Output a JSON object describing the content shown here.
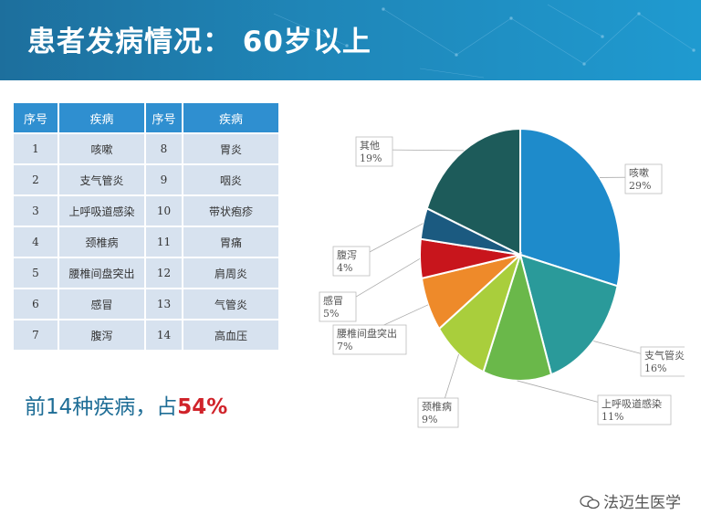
{
  "header": {
    "title": "患者发病情况：  60岁以上"
  },
  "table": {
    "headers": [
      "序号",
      "疾病",
      "序号",
      "疾病"
    ],
    "rows": [
      [
        "1",
        "咳嗽",
        "8",
        "胃炎"
      ],
      [
        "2",
        "支气管炎",
        "9",
        "咽炎"
      ],
      [
        "3",
        "上呼吸道感染",
        "10",
        "带状疱疹"
      ],
      [
        "4",
        "颈椎病",
        "11",
        "胃痛"
      ],
      [
        "5",
        "腰椎间盘突出",
        "12",
        "肩周炎"
      ],
      [
        "6",
        "感冒",
        "13",
        "气管炎"
      ],
      [
        "7",
        "腹泻",
        "14",
        "高血压"
      ]
    ]
  },
  "summary": {
    "text": "前14种疾病，占",
    "value": "54%"
  },
  "chart_data": {
    "type": "pie",
    "slices": [
      {
        "label": "咳嗽",
        "value": 29,
        "display": "29%",
        "color": "#1e8bcb"
      },
      {
        "label": "支气管炎",
        "value": 16,
        "display": "16%",
        "color": "#2a9a9a"
      },
      {
        "label": "上呼吸道感染",
        "value": 11,
        "display": "11%",
        "color": "#6ab84a"
      },
      {
        "label": "颈椎病",
        "value": 9,
        "display": "9%",
        "color": "#a9ce3c"
      },
      {
        "label": "腰椎间盘突出",
        "value": 7,
        "display": "7%",
        "color": "#ee8a2a"
      },
      {
        "label": "感冒",
        "value": 5,
        "display": "5%",
        "color": "#c8151c"
      },
      {
        "label": "腹泻",
        "value": 4,
        "display": "4%",
        "color": "#1b5a80"
      },
      {
        "label": "其他",
        "value": 19,
        "display": "19%",
        "color": "#1d5b5a"
      }
    ]
  },
  "watermark": {
    "text": "法迈生医学"
  },
  "colors": {
    "banner": "#1f86b8",
    "header_cell": "#2f8fd0",
    "body_cell": "#d7e2ef",
    "summary_text": "#1e6d96",
    "summary_value": "#d0232a"
  }
}
